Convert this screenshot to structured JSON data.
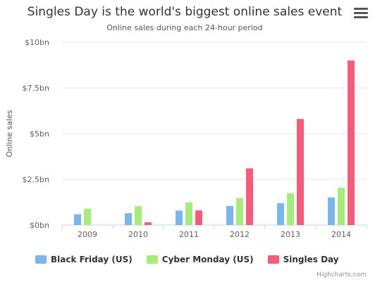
{
  "chart_data": {
    "type": "bar",
    "title": "Singles Day is the world's biggest online sales event",
    "subtitle": "Online sales during each 24-hour period",
    "ylabel": "Online sales",
    "xlabel": "",
    "categories": [
      "2009",
      "2010",
      "2011",
      "2012",
      "2013",
      "2014"
    ],
    "ylim": [
      0,
      10
    ],
    "yticks": [
      {
        "value": 0,
        "label": "$0bn"
      },
      {
        "value": 2.5,
        "label": "$2.5bn"
      },
      {
        "value": 5,
        "label": "$5bn"
      },
      {
        "value": 7.5,
        "label": "$7.5bn"
      },
      {
        "value": 10,
        "label": "$10bn"
      }
    ],
    "grid": true,
    "legend_position": "bottom-left",
    "series": [
      {
        "name": "Black Friday (US)",
        "color": "#7cb5ec",
        "values": [
          0.59,
          0.65,
          0.79,
          1.04,
          1.2,
          1.51
        ]
      },
      {
        "name": "Cyber Monday (US)",
        "color": "#a6ec7c",
        "values": [
          0.89,
          1.03,
          1.25,
          1.47,
          1.74,
          2.04
        ]
      },
      {
        "name": "Singles Day",
        "color": "#f45b7c",
        "values": [
          0,
          0.15,
          0.8,
          3.1,
          5.8,
          9.0
        ]
      }
    ]
  },
  "ui": {
    "menu_icon": "hamburger-icon",
    "credits": "Highcharts.com"
  }
}
